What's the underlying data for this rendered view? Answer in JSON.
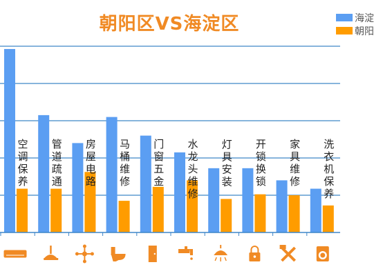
{
  "title": "朝阳区VS海淀区",
  "legend": [
    {
      "label": "海淀",
      "color": "#5b9ef2"
    },
    {
      "label": "朝阳",
      "color": "#ff9c00"
    }
  ],
  "chart_data": {
    "type": "bar",
    "title": "朝阳区VS海淀区",
    "xlabel": "",
    "ylabel": "",
    "ylim": [
      0,
      220
    ],
    "grid": true,
    "legend_position": "top-right",
    "categories": [
      "空调保养",
      "管道疏通",
      "房屋电路",
      "马桶维修",
      "门窗五金",
      "水龙头维修",
      "灯具安装",
      "开锁换锁",
      "家具维修",
      "洗衣机保养"
    ],
    "category_icons": [
      "air-conditioner-icon",
      "plunger-icon",
      "circuit-icon",
      "toilet-icon",
      "door-icon",
      "faucet-icon",
      "lamp-icon",
      "lock-icon",
      "tools-icon",
      "washing-machine-icon"
    ],
    "series": [
      {
        "name": "海淀",
        "color": "#5b9ef2",
        "values": [
          197,
          126,
          96,
          124,
          104,
          86,
          69,
          69,
          56,
          47
        ]
      },
      {
        "name": "朝阳",
        "color": "#ff9c00",
        "values": [
          47,
          47,
          65,
          34,
          49,
          56,
          36,
          41,
          40,
          29
        ]
      }
    ]
  }
}
